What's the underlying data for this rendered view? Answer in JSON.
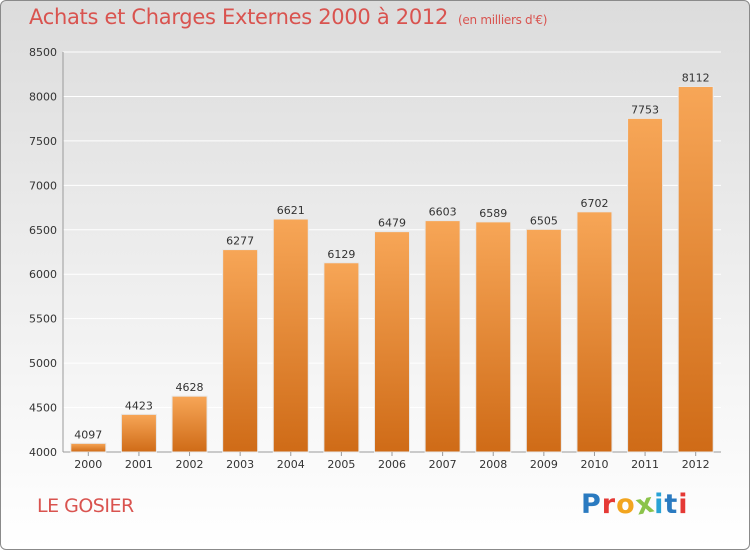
{
  "chart_data": {
    "type": "bar",
    "title": "Achats et Charges Externes 2000 à 2012",
    "subtitle": "(en milliers d'€)",
    "categories": [
      "2000",
      "2001",
      "2002",
      "2003",
      "2004",
      "2005",
      "2006",
      "2007",
      "2008",
      "2009",
      "2010",
      "2011",
      "2012"
    ],
    "values": [
      4097,
      4423,
      4628,
      6277,
      6621,
      6129,
      6479,
      6603,
      6589,
      6505,
      6702,
      7753,
      8112
    ],
    "ylim": [
      4000,
      8500
    ],
    "yticks": [
      4000,
      4500,
      5000,
      5500,
      6000,
      6500,
      7000,
      7500,
      8000,
      8500
    ],
    "grid": true,
    "bar_color": "#f0923a",
    "grid_color": "#ffffff"
  },
  "location": "LE GOSIER",
  "brand": {
    "letters": [
      "P",
      "r",
      "o",
      "x",
      "i",
      "t",
      "i"
    ],
    "colors": [
      "#2a7ac0",
      "#e53935",
      "#f2a51f",
      "#8bc34a",
      "#29a3d6",
      "#2a7ac0",
      "#e53935"
    ]
  }
}
